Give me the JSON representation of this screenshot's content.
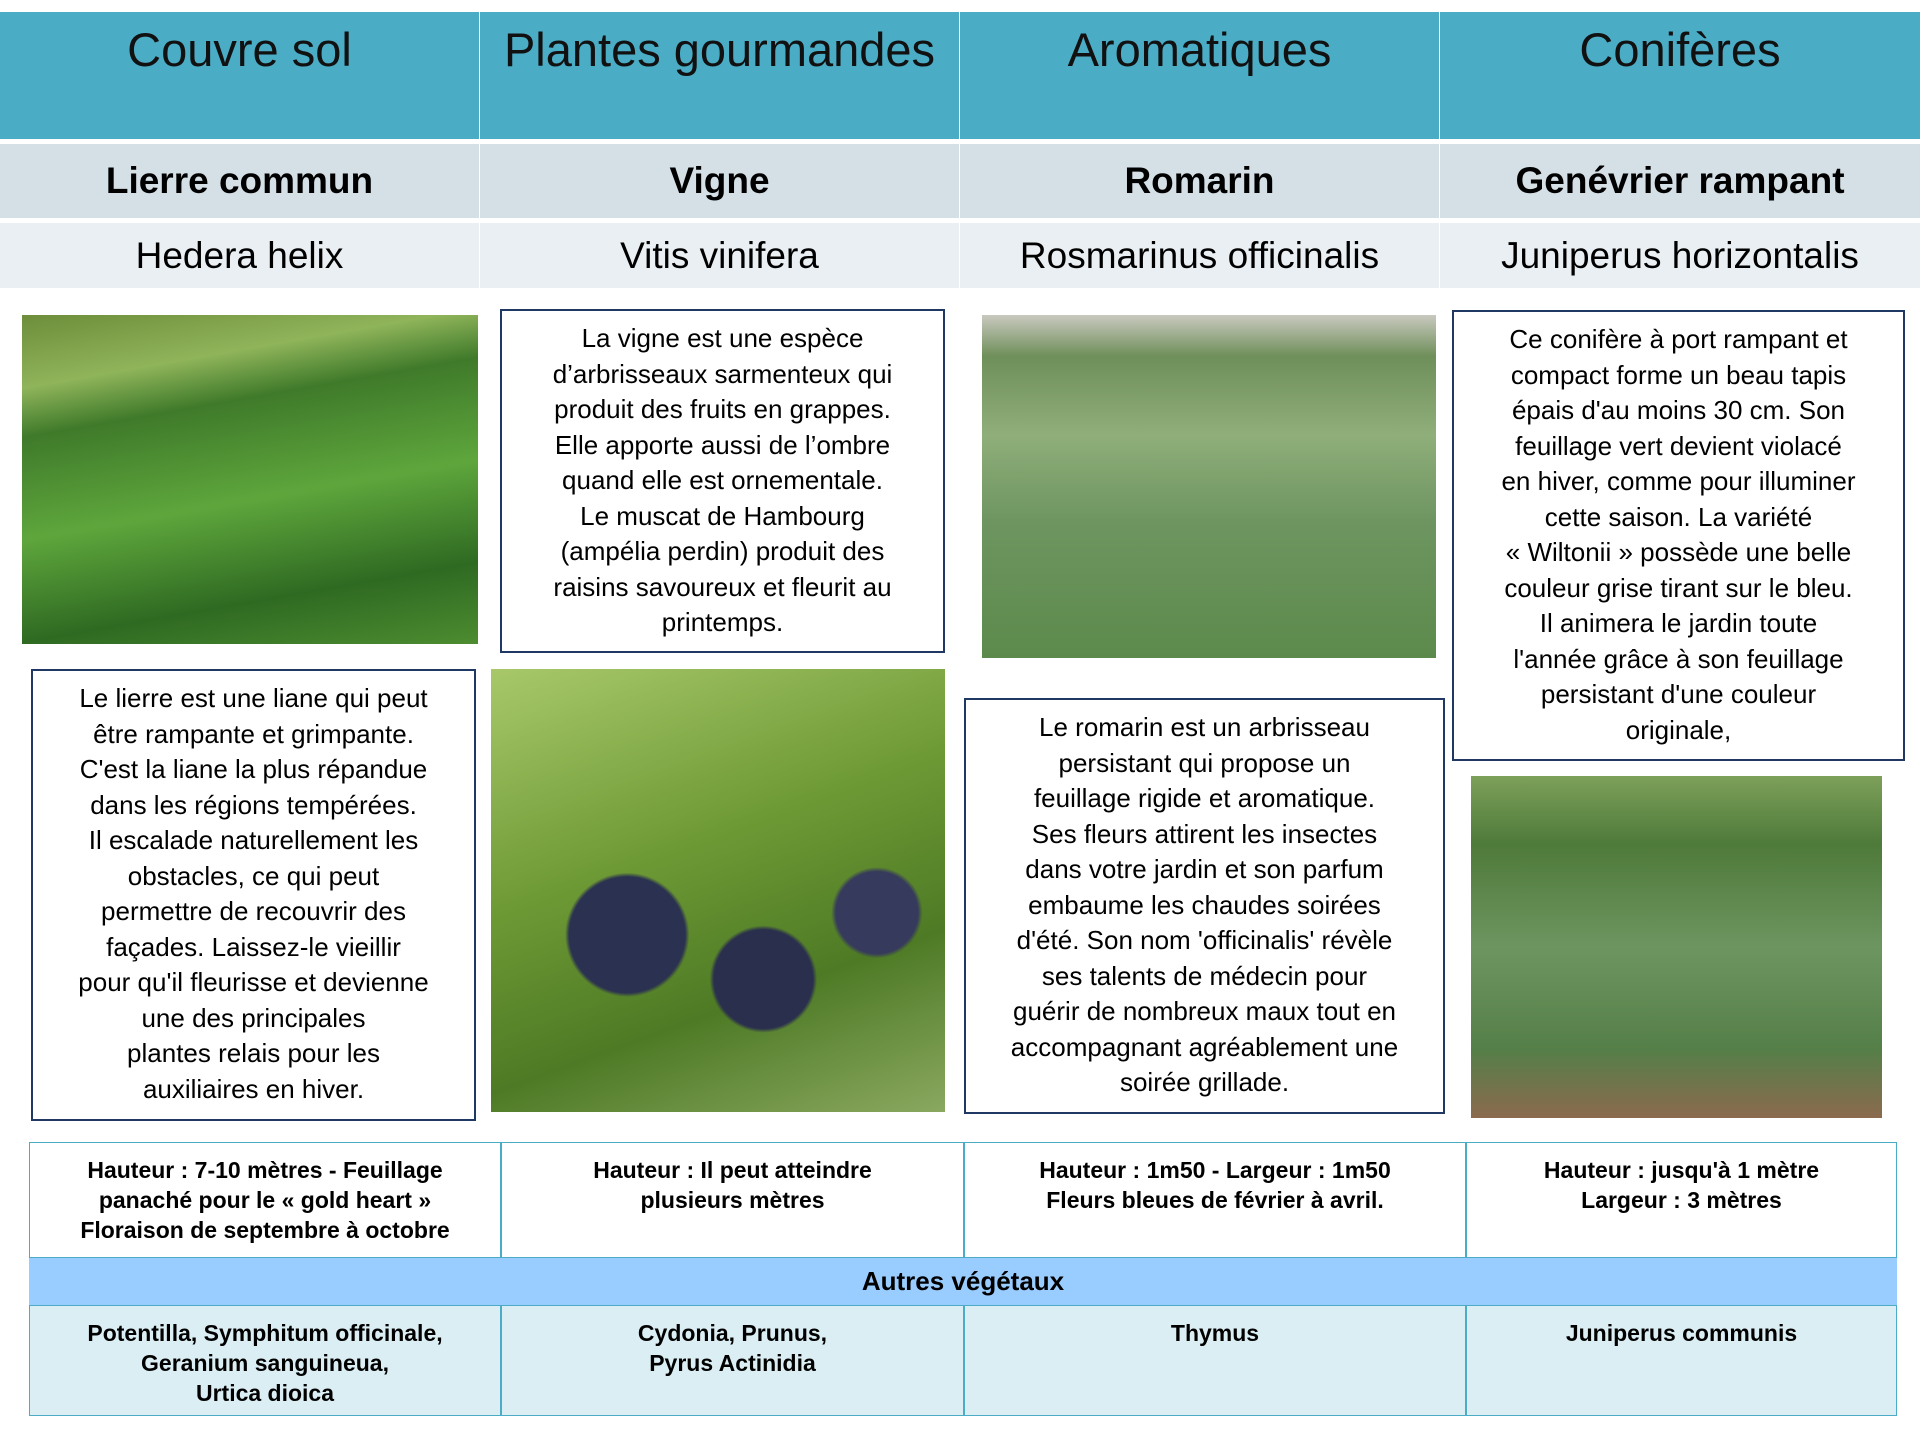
{
  "columns": [
    {
      "category": "Couvre sol",
      "common_name": "Lierre commun",
      "latin_name": "Hedera helix",
      "description": [
        "Le lierre est une liane qui peut",
        "être rampante et grimpante.",
        "C'est la liane la plus répandue",
        "dans les régions tempérées.",
        "Il escalade naturellement les",
        "obstacles, ce qui peut",
        "permettre de recouvrir des",
        "façades. Laissez-le  vieillir",
        "pour qu'il fleurisse et devienne",
        "une des principales",
        "plantes relais pour les",
        "auxiliaires en hiver."
      ],
      "details": [
        "Hauteur : 7-10 mètres  - Feuillage",
        "panaché pour le « gold heart »",
        "Floraison de septembre à octobre"
      ],
      "other_plants": [
        "Potentilla, Symphitum officinale,",
        "Geranium sanguineua,",
        "Urtica dioica"
      ]
    },
    {
      "category": "Plantes gourmandes",
      "common_name": "Vigne",
      "latin_name": "Vitis vinifera",
      "description": [
        "La vigne est une espèce",
        "d’arbrisseaux sarmenteux qui",
        "produit des fruits en grappes.",
        "Elle apporte aussi de l’ombre",
        "quand elle est ornementale.",
        "Le muscat de Hambourg",
        "(ampélia perdin) produit des",
        "raisins savoureux et fleurit au",
        "printemps."
      ],
      "details": [
        "Hauteur : Il peut atteindre",
        "plusieurs mètres"
      ],
      "other_plants": [
        "Cydonia, Prunus,",
        "Pyrus Actinidia"
      ]
    },
    {
      "category": "Aromatiques",
      "common_name": "Romarin",
      "latin_name": "Rosmarinus officinalis",
      "description": [
        "Le romarin est un arbrisseau",
        "persistant qui propose un",
        "feuillage rigide et aromatique.",
        "Ses fleurs attirent les insectes",
        "dans votre jardin et son parfum",
        "embaume les chaudes soirées",
        "d'été. Son nom 'officinalis'  révèle",
        "ses talents de médecin pour",
        "guérir de nombreux maux tout en",
        "accompagnant agréablement une",
        "soirée grillade."
      ],
      "details": [
        "Hauteur : 1m50 -  Largeur : 1m50",
        "Fleurs bleues de février à avril."
      ],
      "other_plants": [
        "Thymus"
      ]
    },
    {
      "category": "Conifères",
      "common_name": "Genévrier rampant",
      "latin_name": "Juniperus horizontalis",
      "description": [
        "Ce conifère à port rampant et",
        "compact forme un beau tapis",
        "épais d'au moins 30 cm. Son",
        "feuillage vert devient violacé",
        "en hiver, comme pour illuminer",
        "cette saison. La variété",
        "« Wiltonii » possède une belle",
        "couleur grise tirant sur le bleu.",
        "Il animera le jardin toute",
        "l'année grâce à son feuillage",
        "persistant d'une couleur",
        "originale,"
      ],
      "details": [
        "Hauteur :  jusqu'à 1 mètre",
        "Largeur  : 3 mètres"
      ],
      "other_plants": [
        "Juniperus  communis"
      ]
    }
  ],
  "other_plants_title": "Autres végétaux"
}
